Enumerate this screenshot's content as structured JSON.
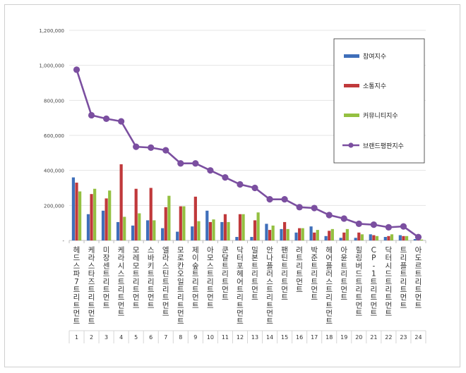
{
  "chart_data": {
    "type": "bar",
    "categories": [
      "헤드스파7트리트먼트",
      "케라스타즈트리트먼트",
      "미장센트리트먼트",
      "케라시스트리트먼트",
      "모레모트리트먼트",
      "스바키트리트먼트",
      "엘라스틴트리트먼트",
      "모로칸오일트리트먼트",
      "제이숲트리트먼트",
      "아모스트리트먼트",
      "쿤달트리트먼트",
      "닥터포헤어트리트먼트",
      "밀본트리트먼트",
      "안나플러스트리트먼트",
      "팬틴트리트먼트",
      "려트리트먼트",
      "박준트리트먼트",
      "헤어플러스트리트먼트",
      "아윤트리트먼트",
      "힐링버드트리트먼트",
      "CP-1트리트먼트",
      "닥터시드트리트먼트",
      "트리플트리트먼트",
      "아도르트리트먼트"
    ],
    "ranks": [
      "1",
      "2",
      "3",
      "4",
      "5",
      "6",
      "7",
      "8",
      "9",
      "10",
      "11",
      "12",
      "13",
      "14",
      "15",
      "16",
      "17",
      "18",
      "19",
      "20",
      "21",
      "22",
      "23",
      "24"
    ],
    "series": [
      {
        "name": "참여지수",
        "color": "#3f6fba",
        "values": [
          360000,
          150000,
          170000,
          105000,
          85000,
          115000,
          70000,
          50000,
          80000,
          170000,
          105000,
          20000,
          20000,
          95000,
          65000,
          45000,
          80000,
          25000,
          15000,
          15000,
          35000,
          20000,
          30000,
          8000
        ]
      },
      {
        "name": "소통지수",
        "color": "#c0393b",
        "values": [
          330000,
          265000,
          240000,
          435000,
          295000,
          300000,
          190000,
          195000,
          250000,
          105000,
          150000,
          150000,
          115000,
          60000,
          105000,
          70000,
          45000,
          55000,
          45000,
          45000,
          30000,
          25000,
          25000,
          6000
        ]
      },
      {
        "name": "커뮤니티지수",
        "color": "#94c041",
        "values": [
          280000,
          295000,
          285000,
          135000,
          155000,
          115000,
          255000,
          195000,
          110000,
          120000,
          105000,
          150000,
          160000,
          85000,
          65000,
          70000,
          60000,
          65000,
          65000,
          35000,
          25000,
          35000,
          25000,
          5000
        ]
      },
      {
        "name": "브랜드평판지수",
        "color": "#7b4fa0",
        "type": "line",
        "values": [
          975000,
          715000,
          695000,
          680000,
          535000,
          530000,
          515000,
          440000,
          440000,
          400000,
          360000,
          320000,
          300000,
          235000,
          235000,
          190000,
          185000,
          145000,
          125000,
          95000,
          90000,
          75000,
          80000,
          19000
        ]
      }
    ],
    "ylim": [
      0,
      1200000
    ],
    "yticks": [
      0,
      200000,
      400000,
      600000,
      800000,
      1000000,
      1200000
    ],
    "ytick_labels": [
      "-",
      "200,000",
      "400,000",
      "600,000",
      "800,000",
      "1,000,000",
      "1,200,000"
    ],
    "grid": true,
    "legend_position": "right"
  }
}
